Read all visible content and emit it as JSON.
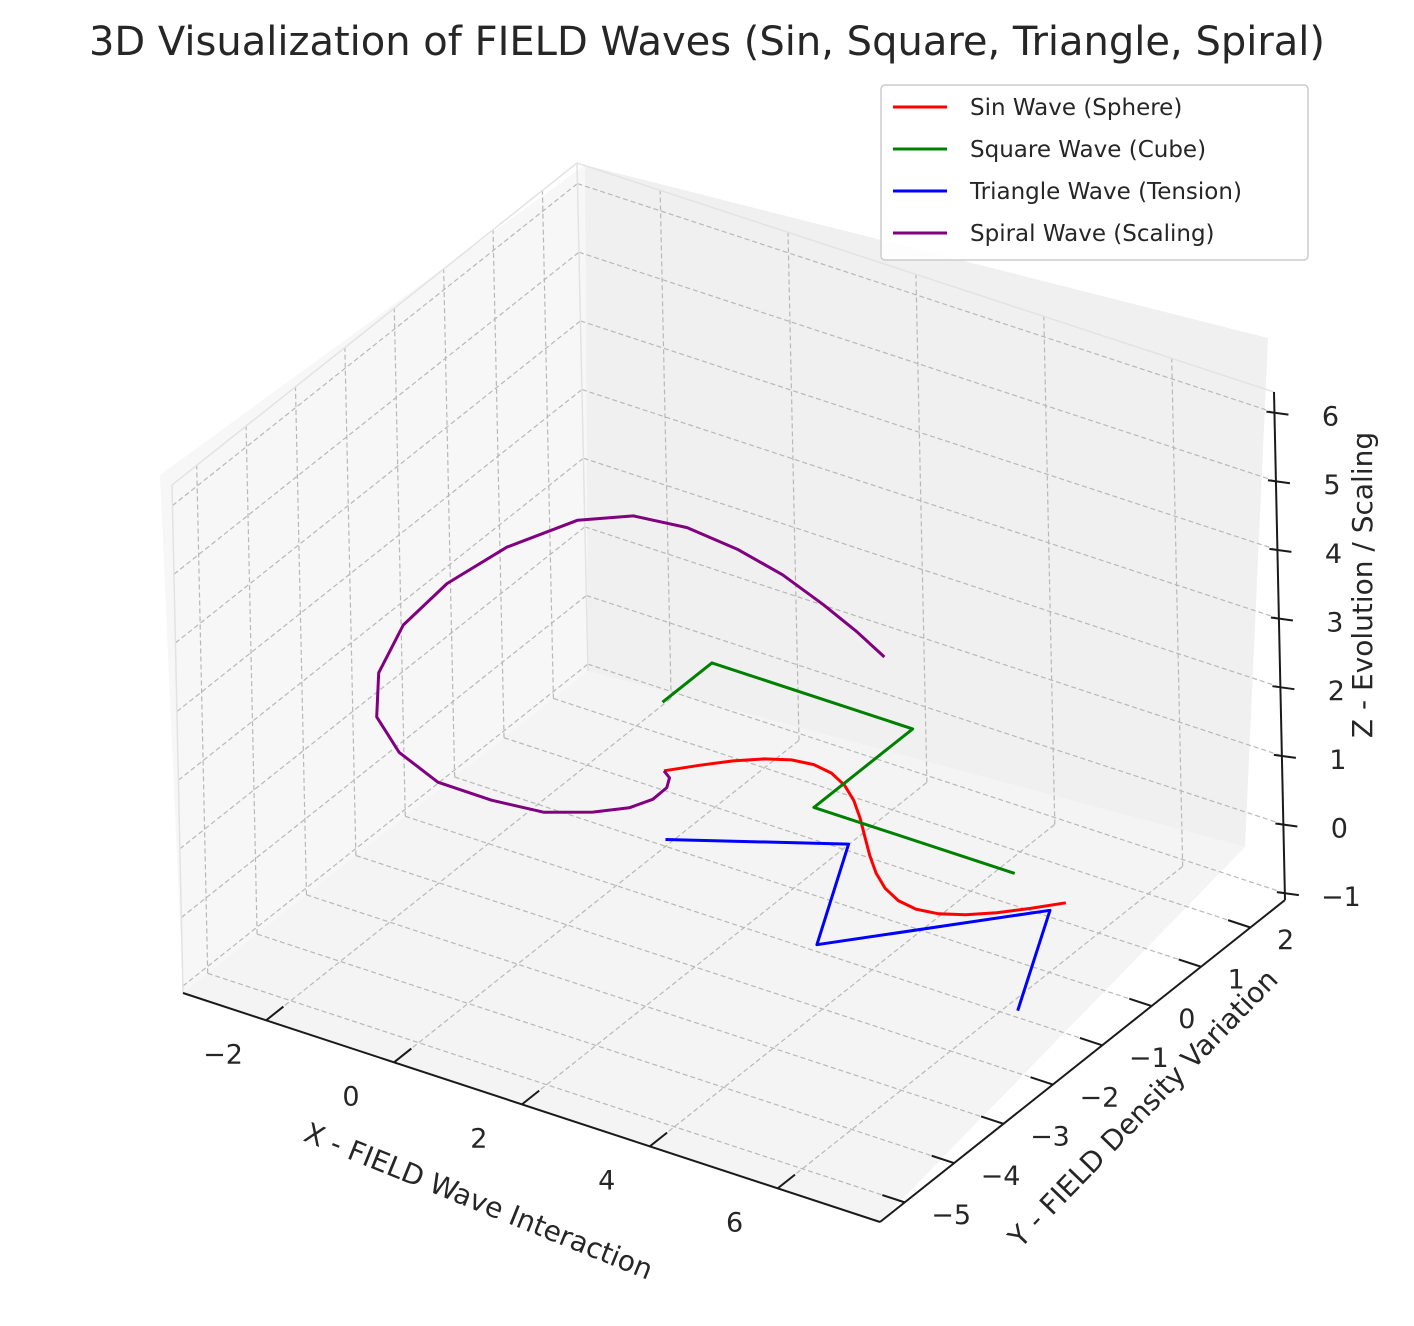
{
  "chart_data": {
    "type": "line",
    "title": "3D Visualization of FIELD Waves (Sin, Square, Triangle, Spiral)",
    "xlabel": "X - FIELD Wave Interaction",
    "ylabel": "Y - FIELD Density Variation",
    "zlabel": "Z - Evolution / Scaling",
    "xlim": [
      -3.3,
      7.6
    ],
    "ylim": [
      -5.5,
      2.7
    ],
    "zlim": [
      -1.1,
      6.3
    ],
    "xticks": [
      "−2",
      "0",
      "2",
      "4",
      "6"
    ],
    "yticks": [
      "−5",
      "−4",
      "−3",
      "−2",
      "−1",
      "0",
      "1",
      "2"
    ],
    "zticks": [
      "−1",
      "0",
      "1",
      "2",
      "3",
      "4",
      "5",
      "6"
    ],
    "grid": true,
    "legend_position": "top-right",
    "series": [
      {
        "name": "Sin Wave (Sphere)",
        "color": "#ff0000",
        "x": [
          0.0,
          0.314,
          0.628,
          0.942,
          1.257,
          1.571,
          1.885,
          2.199,
          2.513,
          2.827,
          3.142,
          3.456,
          3.77,
          4.084,
          4.398,
          4.712,
          5.027,
          5.341,
          5.655,
          5.969,
          6.283
        ],
        "y": [
          0.0,
          0.309,
          0.588,
          0.809,
          0.951,
          1.0,
          0.951,
          0.809,
          0.588,
          0.309,
          0.0,
          -0.309,
          -0.588,
          -0.809,
          -0.951,
          -1.0,
          -0.951,
          -0.809,
          -0.588,
          -0.309,
          0.0
        ],
        "z": [
          0,
          0,
          0,
          0,
          0,
          0,
          0,
          0,
          0,
          0,
          0,
          0,
          0,
          0,
          0,
          0,
          0,
          0,
          0,
          0,
          0
        ]
      },
      {
        "name": "Square Wave (Cube)",
        "color": "#008000",
        "x": [
          0.0,
          0.0,
          3.14,
          3.14,
          6.28
        ],
        "y": [
          0.0,
          1.0,
          1.0,
          -1.0,
          -1.0
        ],
        "z": [
          1,
          1,
          1,
          1,
          1
        ]
      },
      {
        "name": "Triangle Wave (Tension)",
        "color": "#0000ff",
        "x": [
          0.0,
          2.09,
          3.14,
          5.24,
          6.28
        ],
        "y": [
          0.0,
          1.0,
          -1.0,
          1.0,
          -1.0
        ],
        "z": [
          -1,
          -1,
          -1,
          -1,
          -1
        ]
      },
      {
        "name": "Spiral Wave (Scaling)",
        "color": "#800080",
        "x": [
          0.0,
          0.4,
          0.75,
          1.0,
          1.1,
          1.0,
          0.7,
          0.2,
          -0.4,
          -1.0,
          -1.5,
          -1.85,
          -2.0,
          -1.85,
          -1.45,
          -0.8,
          0.0,
          1.0,
          2.1,
          3.2,
          4.3,
          5.3,
          6.2
        ],
        "y": [
          0.0,
          -0.4,
          -0.9,
          -1.5,
          -2.1,
          -2.7,
          -3.3,
          -3.7,
          -4.0,
          -4.0,
          -3.8,
          -3.3,
          -2.6,
          -1.9,
          -1.2,
          -0.6,
          -0.5,
          -0.7,
          -1.1,
          -1.6,
          -2.2,
          -2.8,
          -3.4
        ],
        "z": [
          0.0,
          0.25,
          0.5,
          0.75,
          1.0,
          1.25,
          1.5,
          1.75,
          2.0,
          2.25,
          2.5,
          2.75,
          3.0,
          3.25,
          3.5,
          3.75,
          4.0,
          4.25,
          4.5,
          4.75,
          5.0,
          5.25,
          5.5
        ]
      }
    ]
  }
}
